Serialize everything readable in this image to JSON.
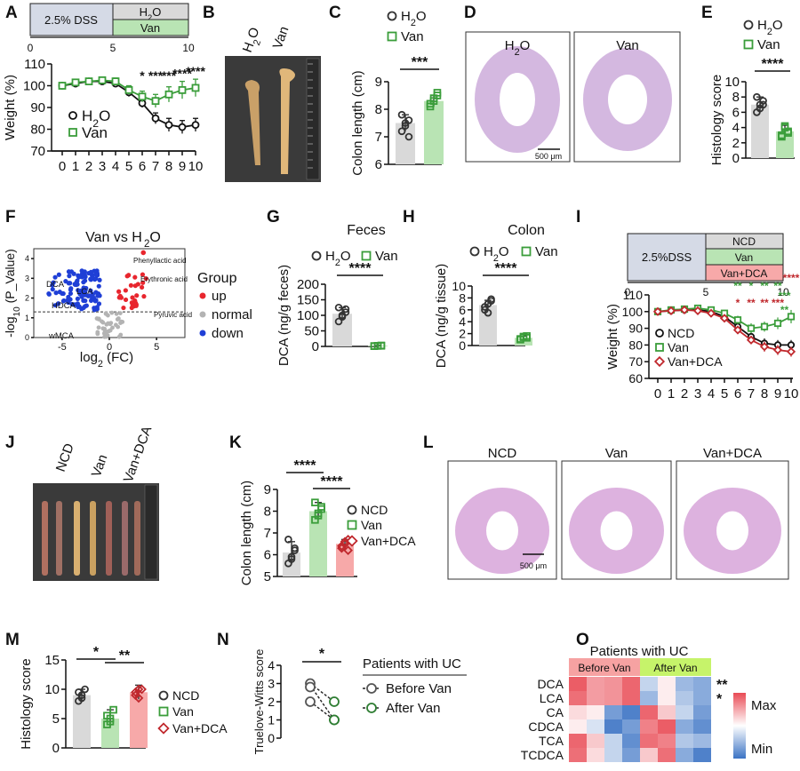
{
  "colors": {
    "water": "#d9d9d9",
    "van": "#b9e4b4",
    "vandca": "#f7a9a9",
    "van_stroke": "#3a9d3a",
    "vandca_stroke": "#c0282d",
    "water_stroke": "#333333",
    "dss_box": "#d5dae6",
    "up": "#e8262e",
    "normal": "#b3b3b3",
    "down": "#1f3fd6",
    "heat_min": "#3b73c4",
    "heat_max": "#e94b55",
    "before_bg": "#f6a2a2",
    "after_bg": "#c6f36a",
    "tissue_pink": "#d7a5d9",
    "tissue_purple": "#c9a6d8"
  },
  "panel_letters": [
    "A",
    "B",
    "C",
    "D",
    "E",
    "F",
    "G",
    "H",
    "I",
    "J",
    "K",
    "L",
    "M",
    "N",
    "O"
  ],
  "glyph_circle": "○",
  "glyph_square": "□",
  "glyph_diamond": "◇",
  "panelA": {
    "timeline": {
      "dss_label": "2.5% DSS",
      "h2o_label": "H2O",
      "van_label": "Van",
      "ticks": [
        "0",
        "5",
        "10"
      ]
    }
  },
  "panelB": {
    "labels": [
      "H2O",
      "Van"
    ]
  },
  "panelD": {
    "labels": [
      "H2O",
      "Van"
    ],
    "scalebar": "500 μm"
  },
  "panelF": {
    "annotations": [
      "Phenyllactic acid",
      "Erythronic acid",
      "Pyruvic acid",
      "DCA",
      "LCA",
      "HDCA",
      "wMCA"
    ]
  },
  "panelG": {
    "subtitle": "Feces"
  },
  "panelH": {
    "subtitle": "Colon"
  },
  "panelI": {
    "timeline": {
      "dss_label": "2.5%DSS",
      "ncd_label": "NCD",
      "van_label": "Van",
      "vandca_label": "Van+DCA",
      "ticks": [
        "0",
        "5",
        "10"
      ]
    }
  },
  "panelJ": {
    "labels": [
      "NCD",
      "Van",
      "Van+DCA"
    ]
  },
  "panelL": {
    "labels": [
      "NCD",
      "Van",
      "Van+DCA"
    ],
    "scalebar": "500 μm"
  },
  "panelN": {
    "legend_title": "Patients with UC",
    "legend": [
      "Before Van",
      "After Van"
    ]
  },
  "panelO": {
    "group_title": "Patients with UC",
    "groups": [
      "Before Van",
      "After Van"
    ],
    "max_label": "Max",
    "min_label": "Min"
  },
  "chart_data": [
    {
      "panel": "A",
      "type": "line",
      "xlabel": "",
      "ylabel": "Weight (%)",
      "x": [
        0,
        1,
        2,
        3,
        4,
        5,
        6,
        7,
        8,
        9,
        10
      ],
      "xlim": [
        0,
        10
      ],
      "ylim": [
        70,
        110
      ],
      "yticks": [
        70,
        80,
        90,
        100,
        110
      ],
      "series": [
        {
          "name": "H2O",
          "values": [
            100,
            101,
            102,
            102,
            101,
            97,
            92,
            85,
            82,
            81,
            82
          ],
          "err": [
            1,
            1,
            1,
            1.5,
            1.5,
            2,
            2,
            2.5,
            3,
            3,
            3
          ]
        },
        {
          "name": "Van",
          "values": [
            100,
            101.5,
            102,
            102.5,
            102,
            98,
            95,
            93,
            96,
            98,
            99
          ],
          "err": [
            1,
            1,
            1,
            1,
            1.5,
            2,
            2.5,
            3,
            3.5,
            4,
            4
          ]
        }
      ],
      "significance": [
        {
          "x": 6,
          "label": "*"
        },
        {
          "x": 7,
          "label": "***"
        },
        {
          "x": 8,
          "label": "***"
        },
        {
          "x": 9,
          "label": "****"
        },
        {
          "x": 10,
          "label": "****"
        }
      ]
    },
    {
      "panel": "C",
      "type": "bar",
      "ylabel": "Colon length (cm)",
      "ylim": [
        6,
        9
      ],
      "yticks": [
        6,
        7,
        8,
        9
      ],
      "categories": [
        "H2O",
        "Van"
      ],
      "values": [
        7.5,
        8.3
      ],
      "err": [
        0.3,
        0.2
      ],
      "points": [
        [
          7.2,
          7.4,
          7.6,
          7.8,
          7.5,
          7.0
        ],
        [
          8.1,
          8.3,
          8.5,
          8.2,
          8.4,
          8.6
        ]
      ],
      "significance": [
        {
          "from": 0,
          "to": 1,
          "label": "***"
        }
      ],
      "legend": [
        "H2O",
        "Van"
      ]
    },
    {
      "panel": "E",
      "type": "bar",
      "ylabel": "Histology score",
      "ylim": [
        0,
        10
      ],
      "yticks": [
        0,
        2,
        4,
        6,
        8,
        10
      ],
      "categories": [
        "H2O",
        "Van"
      ],
      "values": [
        7,
        3.5
      ],
      "err": [
        1,
        0.8
      ],
      "points": [
        [
          6,
          7,
          7.5,
          8,
          6.5,
          7
        ],
        [
          3,
          4,
          3.5,
          2.8,
          4.2,
          3.3
        ]
      ],
      "significance": [
        {
          "from": 0,
          "to": 1,
          "label": "****"
        }
      ],
      "legend": [
        "H2O",
        "Van"
      ]
    },
    {
      "panel": "F",
      "type": "scatter",
      "title": "Van vs H2O",
      "xlabel": "log2 (FC)",
      "ylabel": "-log10 (P_Value)",
      "xlim": [
        -8,
        8
      ],
      "ylim": [
        0,
        4.5
      ],
      "xticks": [
        -5,
        0,
        5
      ],
      "yticks": [
        0,
        1,
        2,
        3,
        4
      ],
      "threshold": 1.3,
      "legend_title": "Group",
      "groups": [
        "up",
        "normal",
        "down"
      ]
    },
    {
      "panel": "G",
      "type": "bar",
      "title": "Feces",
      "ylabel": "DCA (ng/g feces)",
      "ylim": [
        0,
        200
      ],
      "yticks": [
        0,
        50,
        100,
        150,
        200
      ],
      "categories": [
        "H2O",
        "Van"
      ],
      "values": [
        105,
        2
      ],
      "err": [
        20,
        1
      ],
      "points": [
        [
          80,
          95,
          110,
          125,
          100,
          120
        ],
        [
          1,
          2,
          3,
          1,
          2,
          2
        ]
      ],
      "significance": [
        {
          "from": 0,
          "to": 1,
          "label": "****"
        }
      ],
      "legend": [
        "H2O",
        "Van"
      ]
    },
    {
      "panel": "H",
      "type": "bar",
      "title": "Colon",
      "ylabel": "DCA (ng/g tissue)",
      "ylim": [
        0,
        10
      ],
      "yticks": [
        0,
        2,
        4,
        6,
        8,
        10
      ],
      "categories": [
        "H2O",
        "Van"
      ],
      "values": [
        6.8,
        1.3
      ],
      "err": [
        0.8,
        0.3
      ],
      "points": [
        [
          6,
          7,
          7.5,
          6.5,
          5.5,
          7.8
        ],
        [
          1.1,
          1.5,
          1.3,
          1.0,
          1.4,
          1.6
        ]
      ],
      "significance": [
        {
          "from": 0,
          "to": 1,
          "label": "****"
        }
      ],
      "legend": [
        "H2O",
        "Van"
      ]
    },
    {
      "panel": "I",
      "type": "line",
      "ylabel": "Weight (%)",
      "x": [
        0,
        1,
        2,
        3,
        4,
        5,
        6,
        7,
        8,
        9,
        10
      ],
      "xlim": [
        0,
        10
      ],
      "ylim": [
        60,
        110
      ],
      "yticks": [
        60,
        70,
        80,
        90,
        100,
        110
      ],
      "series": [
        {
          "name": "NCD",
          "values": [
            100,
            100.5,
            101,
            101,
            100,
            97,
            91,
            85,
            81,
            80,
            80
          ],
          "err": [
            1,
            1,
            1,
            1,
            1.5,
            2,
            2,
            2.5,
            3,
            3,
            3
          ]
        },
        {
          "name": "Van",
          "values": [
            100,
            101,
            101.5,
            102,
            101,
            99,
            95,
            90,
            91,
            93,
            97
          ],
          "err": [
            1,
            1,
            1,
            1,
            1.5,
            2,
            2.5,
            3,
            3,
            3.5,
            4
          ]
        },
        {
          "name": "Van+DCA",
          "values": [
            100,
            100.5,
            101,
            100.5,
            99,
            96,
            89,
            83,
            79,
            77,
            76
          ],
          "err": [
            1,
            1,
            1,
            1,
            1.5,
            2,
            2,
            2.5,
            3,
            3,
            3
          ]
        }
      ],
      "significance_van": [
        "**",
        "*",
        "**",
        "**",
        "**",
        "***",
        "***"
      ],
      "significance_vandca": [
        "*",
        "**",
        "**",
        "***",
        "****"
      ]
    },
    {
      "panel": "K",
      "type": "bar",
      "ylabel": "Colon length (cm)",
      "ylim": [
        5,
        9
      ],
      "yticks": [
        5,
        6,
        7,
        8,
        9
      ],
      "categories": [
        "NCD",
        "Van",
        "Van+DCA"
      ],
      "values": [
        6.1,
        8.0,
        6.5
      ],
      "err": [
        0.5,
        0.4,
        0.2
      ],
      "points": [
        [
          5.6,
          5.9,
          6.3,
          6.7,
          5.8,
          6.2
        ],
        [
          7.6,
          7.9,
          8.2,
          8.4,
          7.8,
          8.1
        ],
        [
          6.3,
          6.5,
          6.7,
          6.4,
          6.6,
          6.2
        ]
      ],
      "significance": [
        {
          "from": 0,
          "to": 1,
          "label": "****"
        },
        {
          "from": 1,
          "to": 2,
          "label": "****"
        }
      ],
      "legend": [
        "NCD",
        "Van",
        "Van+DCA"
      ]
    },
    {
      "panel": "M",
      "type": "bar",
      "ylabel": "Histology score",
      "ylim": [
        0,
        15
      ],
      "yticks": [
        0,
        5,
        10,
        15
      ],
      "categories": [
        "NCD",
        "Van",
        "Van+DCA"
      ],
      "values": [
        9,
        5,
        9.5
      ],
      "err": [
        1,
        1.5,
        1.2
      ],
      "points": [
        [
          8,
          9,
          10,
          9.5,
          8.5
        ],
        [
          4,
          5,
          6.5,
          5.5,
          4.5
        ],
        [
          9,
          10,
          10,
          9.5,
          8.5
        ]
      ],
      "significance": [
        {
          "from": 0,
          "to": 1,
          "label": "*"
        },
        {
          "from": 1,
          "to": 2,
          "label": "**"
        }
      ],
      "legend": [
        "NCD",
        "Van",
        "Van+DCA"
      ]
    },
    {
      "panel": "N",
      "type": "scatter",
      "ylabel": "Truelove-Witts score",
      "ylim": [
        0,
        4
      ],
      "yticks": [
        0,
        1,
        2,
        3,
        4
      ],
      "pairs": [
        [
          3,
          2
        ],
        [
          3,
          1
        ],
        [
          2,
          1
        ]
      ],
      "significance": [
        {
          "from": 0,
          "to": 1,
          "label": "*"
        }
      ]
    },
    {
      "panel": "O",
      "type": "heatmap",
      "rows": [
        "DCA",
        "LCA",
        "CA",
        "CDCA",
        "TCA",
        "TCDCA"
      ],
      "columns": [
        "Before Van",
        "Before Van",
        "Before Van",
        "Before Van",
        "After Van",
        "After Van",
        "After Van",
        "After Van"
      ],
      "values": [
        [
          0.9,
          0.55,
          0.6,
          0.85,
          -0.3,
          0.1,
          -0.5,
          -0.6
        ],
        [
          0.8,
          0.55,
          0.6,
          0.85,
          -0.5,
          0.1,
          -0.4,
          -0.6
        ],
        [
          0.2,
          0.1,
          -0.7,
          -0.9,
          0.85,
          0.3,
          -0.3,
          -0.7
        ],
        [
          0.1,
          -0.2,
          -0.9,
          -0.7,
          0.7,
          0.9,
          -0.6,
          -0.8
        ],
        [
          0.85,
          0.3,
          -0.3,
          -0.8,
          0.8,
          0.7,
          -0.4,
          -0.5
        ],
        [
          0.8,
          0.2,
          -0.3,
          -0.7,
          0.3,
          0.8,
          -0.6,
          -0.9
        ]
      ],
      "row_significance": [
        "**",
        "*",
        "",
        "",
        "",
        ""
      ]
    }
  ]
}
